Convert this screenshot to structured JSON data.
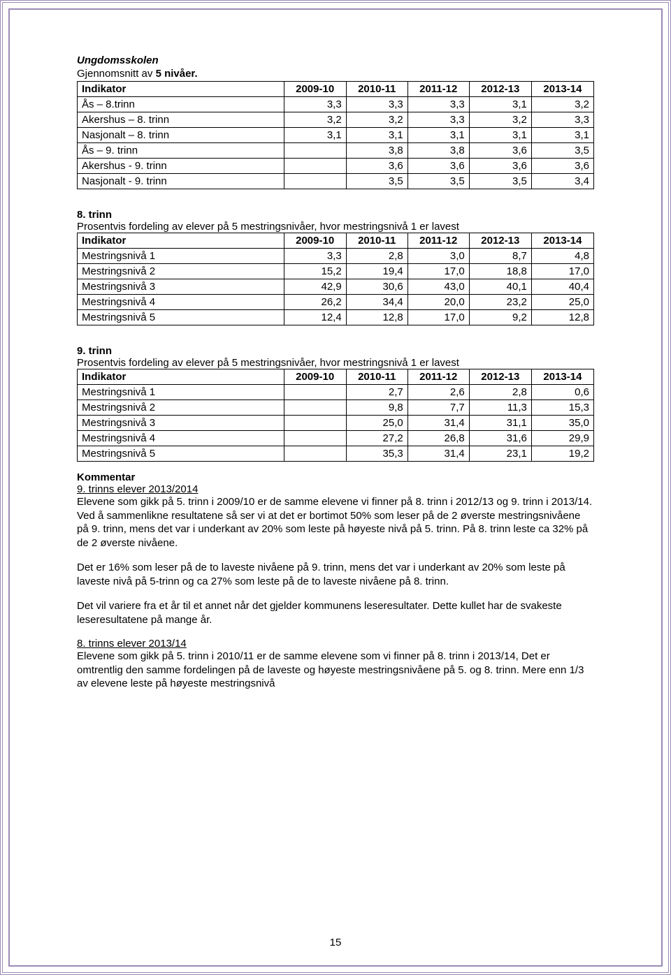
{
  "section1": {
    "title": "Ungdomsskolen",
    "subtitle_pre": "Gjennomsnitt av ",
    "subtitle_bold": "5 nivåer.",
    "columns": [
      "Indikator",
      "2009-10",
      "2010-11",
      "2011-12",
      "2012-13",
      "2013-14"
    ],
    "rows": [
      [
        "Ås       – 8.trinn",
        "3,3",
        "3,3",
        "3,3",
        "3,1",
        "3,2"
      ],
      [
        "Akershus – 8. trinn",
        "3,2",
        "3,2",
        "3,3",
        "3,2",
        "3,3"
      ],
      [
        "Nasjonalt – 8. trinn",
        "3,1",
        "3,1",
        "3,1",
        "3,1",
        "3,1"
      ],
      [
        "Ås     – 9. trinn",
        "",
        "3,8",
        "3,8",
        "3,6",
        "3,5"
      ],
      [
        "Akershus  -  9. trinn",
        "",
        "3,6",
        "3,6",
        "3,6",
        "3,6"
      ],
      [
        "Nasjonalt  -  9. trinn",
        "",
        "3,5",
        "3,5",
        "3,5",
        "3,4"
      ]
    ]
  },
  "section2": {
    "label": "8. trinn",
    "caption": "Prosentvis fordeling av elever på 5 mestringsnivåer, hvor mestringsnivå 1 er lavest",
    "columns": [
      "Indikator",
      "2009-10",
      "2010-11",
      "2011-12",
      "2012-13",
      "2013-14"
    ],
    "rows": [
      [
        "Mestringsnivå 1",
        "3,3",
        "2,8",
        "3,0",
        "8,7",
        "4,8"
      ],
      [
        "Mestringsnivå 2",
        "15,2",
        "19,4",
        "17,0",
        "18,8",
        "17,0"
      ],
      [
        "Mestringsnivå 3",
        "42,9",
        "30,6",
        "43,0",
        "40,1",
        "40,4"
      ],
      [
        "Mestringsnivå 4",
        "26,2",
        "34,4",
        "20,0",
        "23,2",
        "25,0"
      ],
      [
        "Mestringsnivå 5",
        "12,4",
        "12,8",
        "17,0",
        "9,2",
        "12,8"
      ]
    ]
  },
  "section3": {
    "label": "9. trinn",
    "caption": "Prosentvis fordeling av elever på 5 mestringsnivåer, hvor mestringsnivå 1 er lavest",
    "columns": [
      "Indikator",
      "2009-10",
      "2010-11",
      "2011-12",
      "2012-13",
      "2013-14"
    ],
    "rows": [
      [
        "Mestringsnivå 1",
        "",
        "2,7",
        "2,6",
        "2,8",
        "0,6"
      ],
      [
        "Mestringsnivå 2",
        "",
        "9,8",
        "7,7",
        "11,3",
        "15,3"
      ],
      [
        "Mestringsnivå 3",
        "",
        "25,0",
        "31,4",
        "31,1",
        "35,0"
      ],
      [
        "Mestringsnivå 4",
        "",
        "27,2",
        "26,8",
        "31,6",
        "29,9"
      ],
      [
        "Mestringsnivå 5",
        "",
        "35,3",
        "31,4",
        "23,1",
        "19,2"
      ]
    ]
  },
  "commentary": {
    "heading": "Kommentar",
    "sub1": "9. trinns elever 2013/2014",
    "p1": "Elevene som gikk på 5. trinn i 2009/10 er de samme elevene vi finner på 8. trinn i 2012/13 og 9. trinn i 2013/14. Ved å sammenlikne resultatene så ser vi at det er bortimot 50% som leser på de 2 øverste mestringsnivåene på 9. trinn, mens det var i underkant av 20% som leste på høyeste nivå  på 5. trinn. På 8. trinn leste ca  32% på de 2 øverste nivåene.",
    "p2": "Det er 16%  som leser på de to laveste nivåene på 9. trinn, mens det var i underkant av 20% som leste på laveste nivå på 5-trinn og ca 27% som leste på de to laveste nivåene på 8. trinn.",
    "p3": "Det vil variere fra et år til et annet når det gjelder kommunens leseresultater. Dette kullet har de svakeste leseresultatene på mange år.",
    "sub2": "8. trinns elever 2013/14",
    "p4": "Elevene som gikk på 5. trinn i 2010/11 er de samme elevene som vi finner på 8. trinn i 2013/14, Det er omtrentlig den samme fordelingen på de laveste og høyeste mestringsnivåene på  5. og 8. trinn. Mere enn 1/3 av elevene leste på høyeste mestringsnivå"
  },
  "page_number": "15"
}
